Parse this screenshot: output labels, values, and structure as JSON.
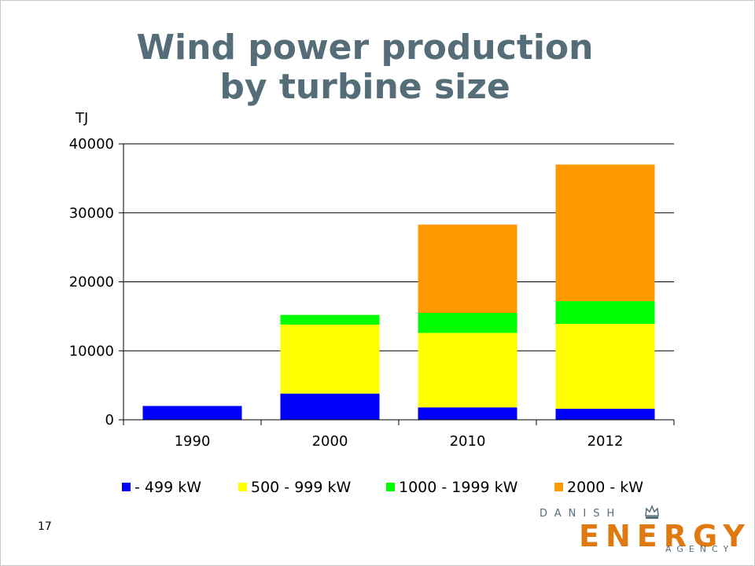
{
  "slide": {
    "title_line1": "Wind power production",
    "title_line2": "by turbine size",
    "page_number": "17"
  },
  "logo": {
    "line1": "DANISH",
    "line2": "ENERGY",
    "line3": "AGENCY",
    "icon": "crown-icon"
  },
  "chart_data": {
    "type": "bar",
    "stacked": true,
    "ylabel": "TJ",
    "categories": [
      "1990",
      "2000",
      "2010",
      "2012"
    ],
    "ylim": [
      0,
      40000
    ],
    "yticks": [
      "0",
      "10000",
      "20000",
      "30000",
      "40000"
    ],
    "grid": true,
    "legend_position": "bottom",
    "series": [
      {
        "name": "- 499 kW",
        "values": [
          2000,
          3800,
          1800,
          1600
        ],
        "color": "#0000ff"
      },
      {
        "name": "500 - 999 kW",
        "values": [
          0,
          10000,
          10800,
          12300
        ],
        "color": "#ffff00"
      },
      {
        "name": "1000 - 1999 kW",
        "values": [
          0,
          1400,
          2900,
          3300
        ],
        "color": "#00ff00"
      },
      {
        "name": "2000 - kW",
        "values": [
          0,
          0,
          12800,
          19800
        ],
        "color": "#ff9900"
      }
    ]
  }
}
